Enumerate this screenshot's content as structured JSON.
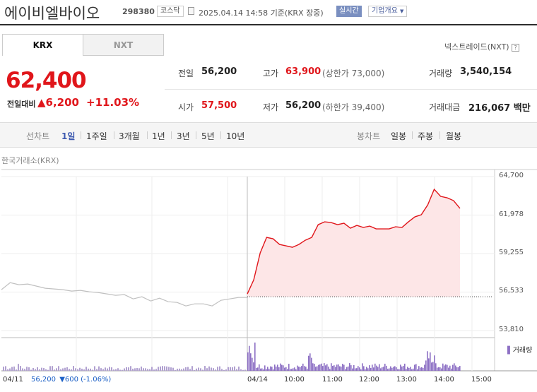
{
  "header": {
    "name": "에이비엘바이오",
    "code": "298380",
    "market_badge": "코스닥",
    "datetime": "2025.04.14 14:58",
    "basis": "기준(KRX 장중)",
    "live_label": "실시간",
    "company_label": "기업개요"
  },
  "tabs": [
    {
      "label": "KRX"
    },
    {
      "label": "NXT"
    }
  ],
  "nextrade_label": "넥스트레이드(NXT)",
  "quote": {
    "price": "62,400",
    "change_label": "전일대비",
    "change": "6,200",
    "change_pct": "+11.03%",
    "colors": {
      "up": "#e0161b",
      "down": "#1a5fc6"
    }
  },
  "stats": {
    "prev_close_label": "전일",
    "prev_close": "56,200",
    "open_label": "시가",
    "open": "57,500",
    "high_label": "고가",
    "high": "63,900",
    "upper_limit": "(상한가 73,000)",
    "low_label": "저가",
    "low": "56,200",
    "lower_limit": "(하한가 39,400)",
    "volume_label": "거래량",
    "volume": "3,540,154",
    "value_label": "거래대금",
    "value": "216,067 백만"
  },
  "period_bar": {
    "line_label": "선차트",
    "line_periods": [
      "1일",
      "1주일",
      "3개월",
      "1년",
      "3년",
      "5년",
      "10년"
    ],
    "active": "1일",
    "candle_label": "봉차트",
    "candle_periods": [
      "일봉",
      "주봉",
      "월봉"
    ]
  },
  "exchange_label": "한국거래소(KRX)",
  "prev_day_label": "04/11",
  "prev_day_close": "56,200",
  "prev_day_change": "▼600 (-1.06%)",
  "chart_data": {
    "type": "line",
    "y_ticks": [
      "64,700",
      "61,978",
      "59,255",
      "56,533",
      "53,810"
    ],
    "ylim": [
      53810,
      64700
    ],
    "x_ticks": [
      "04/14",
      "10:00",
      "11:00",
      "12:00",
      "13:00",
      "14:00",
      "15:00"
    ],
    "reference_line": 56200,
    "series": [
      {
        "day": "04/11",
        "color": "#c0c0c0",
        "values": [
          56700,
          57200,
          57050,
          57100,
          56950,
          56800,
          56750,
          56700,
          56600,
          56650,
          56550,
          56500,
          56400,
          56300,
          56350,
          56050,
          56200,
          55900,
          56100,
          55850,
          55800,
          55550,
          55700,
          55700,
          55550,
          55950,
          56050,
          56150,
          56150
        ]
      },
      {
        "day": "04/14",
        "color": "#e0161b",
        "fill": "#fde6e7",
        "values": [
          56400,
          57400,
          59300,
          60400,
          60300,
          59900,
          59800,
          59700,
          59900,
          60200,
          60400,
          61300,
          61500,
          61450,
          61300,
          61400,
          61050,
          61250,
          61100,
          61200,
          61000,
          61000,
          61000,
          61150,
          61100,
          61500,
          61850,
          62000,
          62700,
          63800,
          63300,
          63200,
          63000,
          62450
        ]
      }
    ],
    "volume_legend": "거래량"
  }
}
